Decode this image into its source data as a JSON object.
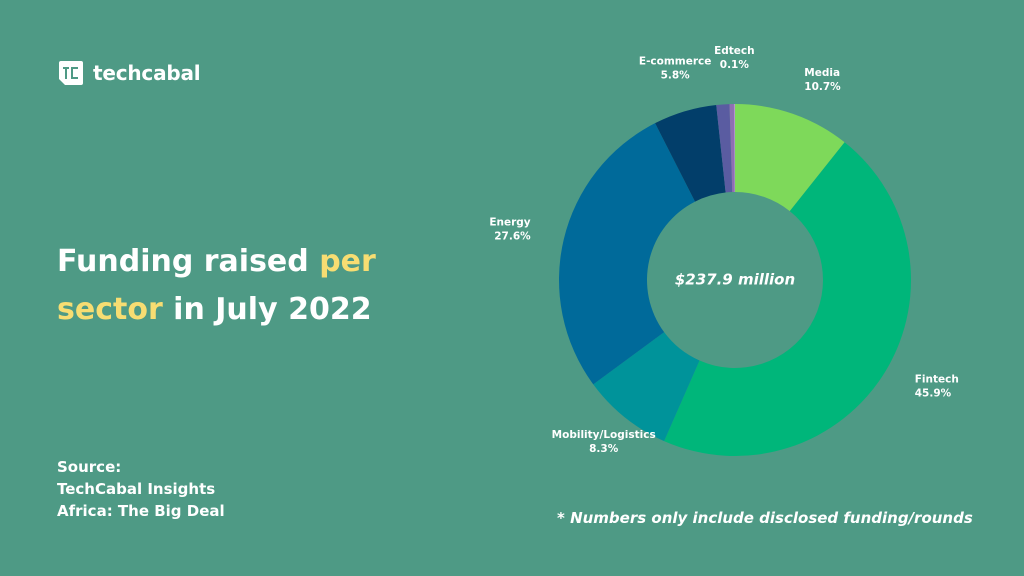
{
  "brand": {
    "name": "techcabal",
    "logo_icon": "techcabal-logo-icon"
  },
  "headline": {
    "part1": "Funding raised ",
    "accent1": "per",
    "accent2": "sector",
    "part2": " in July 2022"
  },
  "source": {
    "heading": "Source:",
    "lines": [
      "TechCabal Insights",
      "Africa: The Big Deal"
    ]
  },
  "footnote": "* Numbers only include disclosed funding/rounds",
  "colors": {
    "background": "#4e9a85",
    "accent_text": "#f7dd72"
  },
  "chart_data": {
    "type": "pie",
    "center_label": "$237.9 million",
    "slices": [
      {
        "label": "Media",
        "value": 10.7,
        "value_label": "10.7%",
        "color": "#7ed95a"
      },
      {
        "label": "Fintech",
        "value": 45.9,
        "value_label": "45.9%",
        "color": "#00b67a"
      },
      {
        "label": "Mobility/Logistics",
        "value": 8.3,
        "value_label": "8.3%",
        "color": "#00939a"
      },
      {
        "label": "Energy",
        "value": 27.6,
        "value_label": "27.6%",
        "color": "#006a9a"
      },
      {
        "label": "E-commerce",
        "value": 5.8,
        "value_label": "5.8%",
        "color": "#023e6a"
      },
      {
        "label": "",
        "value": 1.2,
        "value_label": "",
        "color": "#5a5ca1"
      },
      {
        "label": "",
        "value": 0.4,
        "value_label": "",
        "color": "#8f6fb3"
      },
      {
        "label": "Edtech",
        "value": 0.1,
        "value_label": "0.1%",
        "color": "#b78fd0"
      }
    ]
  }
}
